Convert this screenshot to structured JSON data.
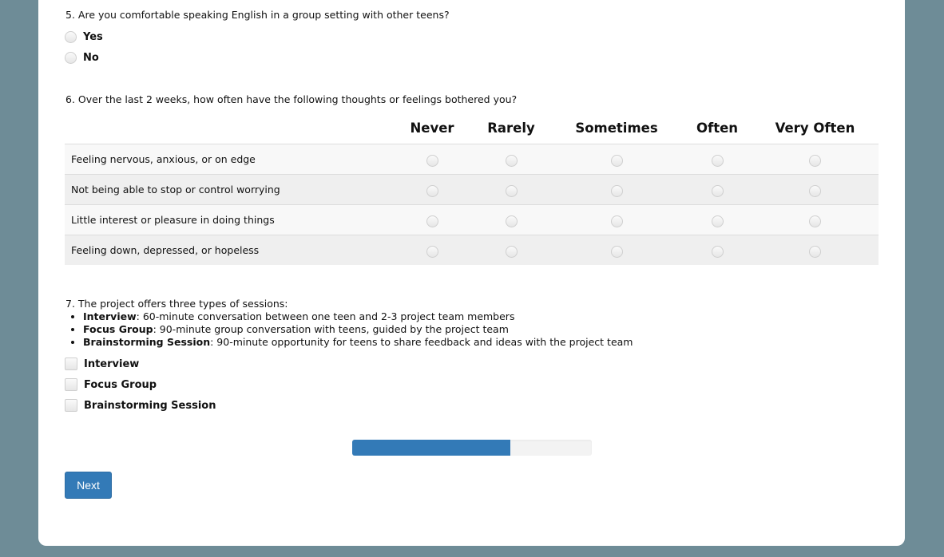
{
  "q5": {
    "text": "5. Are you comfortable speaking English in a group setting with other teens?",
    "options": [
      "Yes",
      "No"
    ]
  },
  "q6": {
    "text": "6. Over the last 2 weeks, how often have the following thoughts or feelings bothered you?",
    "columns": [
      "Never",
      "Rarely",
      "Sometimes",
      "Often",
      "Very Often"
    ],
    "rows": [
      "Feeling nervous, anxious, or on edge",
      "Not being able to stop or control worrying",
      "Little interest or pleasure in doing things",
      "Feeling down, depressed, or hopeless"
    ]
  },
  "q7": {
    "intro": "7. The project offers three types of sessions:",
    "bullets": [
      {
        "term": "Interview",
        "desc": ": 60-minute conversation between one teen and 2-3 project team members"
      },
      {
        "term": "Focus Group",
        "desc": ": 90-minute group conversation with teens, guided by the project team"
      },
      {
        "term": "Brainstorming Session",
        "desc": ": 90-minute opportunity for teens to share feedback and ideas with the project team"
      }
    ],
    "options": [
      "Interview",
      "Focus Group",
      "Brainstorming Session"
    ]
  },
  "progress": {
    "percent": 66,
    "color": "#337ab7"
  },
  "next_label": "Next"
}
